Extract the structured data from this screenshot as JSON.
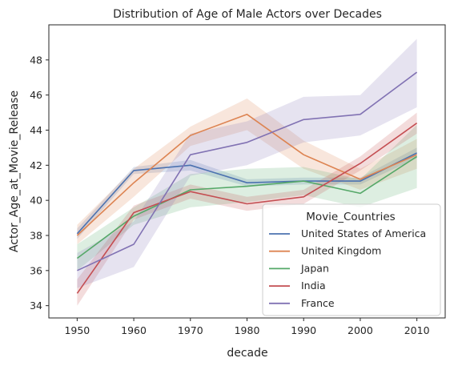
{
  "chart_data": {
    "type": "line",
    "title": "Distribution of Age of Male Actors over Decades",
    "xlabel": "decade",
    "ylabel": "Actor_Age_at_Movie_Release",
    "x": [
      1950,
      1960,
      1970,
      1980,
      1990,
      2000,
      2010
    ],
    "xlim": [
      1945,
      2015
    ],
    "ylim": [
      33.3,
      50.0
    ],
    "yticks": [
      34,
      36,
      38,
      40,
      42,
      44,
      46,
      48
    ],
    "legend_title": "Movie_Countries",
    "legend_position": "lower-right",
    "series": [
      {
        "name": "United States of America",
        "color": "#4c72b0",
        "values": [
          38.1,
          41.7,
          42.0,
          41.0,
          41.1,
          41.1,
          42.7
        ],
        "ci_low": [
          37.8,
          41.5,
          41.7,
          40.8,
          40.9,
          40.9,
          42.4
        ],
        "ci_high": [
          38.4,
          41.9,
          42.3,
          41.2,
          41.3,
          41.3,
          43.0
        ]
      },
      {
        "name": "United Kingdom",
        "color": "#dd8452",
        "values": [
          38.0,
          41.0,
          43.7,
          44.9,
          42.6,
          41.2,
          42.6
        ],
        "ci_low": [
          37.5,
          40.2,
          43.1,
          44.0,
          41.8,
          40.6,
          41.8
        ],
        "ci_high": [
          38.6,
          41.8,
          44.2,
          45.8,
          43.4,
          41.8,
          43.5
        ]
      },
      {
        "name": "Japan",
        "color": "#55a868",
        "values": [
          36.7,
          39.1,
          40.6,
          40.8,
          41.1,
          40.4,
          42.5
        ],
        "ci_low": [
          36.0,
          38.6,
          39.6,
          39.9,
          40.3,
          39.6,
          40.7
        ],
        "ci_high": [
          37.5,
          39.6,
          41.5,
          41.8,
          41.9,
          41.2,
          44.3
        ]
      },
      {
        "name": "India",
        "color": "#c44e52",
        "values": [
          34.7,
          39.3,
          40.5,
          39.8,
          40.2,
          42.1,
          44.4
        ],
        "ci_low": [
          34.0,
          38.9,
          40.1,
          39.4,
          39.8,
          41.7,
          43.8
        ],
        "ci_high": [
          35.5,
          39.7,
          40.9,
          40.2,
          40.6,
          42.5,
          45.0
        ]
      },
      {
        "name": "France",
        "color": "#8172b3",
        "values": [
          36.0,
          37.5,
          42.6,
          43.3,
          44.6,
          44.9,
          47.3
        ],
        "ci_low": [
          35.0,
          36.2,
          41.4,
          42.0,
          43.3,
          43.7,
          45.3
        ],
        "ci_high": [
          37.0,
          38.8,
          43.8,
          44.5,
          45.9,
          46.0,
          49.2
        ]
      }
    ]
  }
}
